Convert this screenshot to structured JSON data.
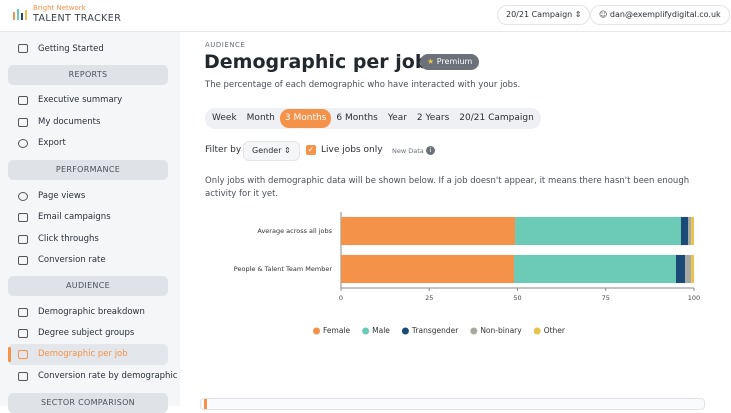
{
  "header": {
    "brand": "Bright Network",
    "product": "TALENT TRACKER",
    "campaign": "20/21 Campaign",
    "user": "dan@exemplifydigital.co.uk"
  },
  "sidebar": {
    "top_item": "Getting Started",
    "sections": [
      {
        "title": "REPORTS",
        "items": [
          "Executive summary",
          "My documents",
          "Export"
        ]
      },
      {
        "title": "PERFORMANCE",
        "items": [
          "Page views",
          "Email campaigns",
          "Click throughs",
          "Conversion rate"
        ]
      },
      {
        "title": "AUDIENCE",
        "items": [
          "Demographic breakdown",
          "Degree subject groups",
          "Demographic per job",
          "Conversion rate by demographic"
        ]
      },
      {
        "title": "SECTOR COMPARISON",
        "items": []
      }
    ]
  },
  "page": {
    "section": "AUDIENCE",
    "title": "Demographic per job",
    "badge": "Premium",
    "subtitle": "The percentage of each demographic who have interacted with your jobs.",
    "tabs": [
      "Week",
      "Month",
      "3 Months",
      "6 Months",
      "Year",
      "2 Years",
      "20/21 Campaign"
    ],
    "filter_label": "Filter by",
    "filter_value": "Gender",
    "checkbox_label": "Live jobs only",
    "new_data": "New Data",
    "note": "Only jobs with demographic data will be shown below. If a job doesn't appear, it means there hasn't been enough activity for it yet."
  },
  "chart_data": {
    "type": "bar",
    "orientation": "horizontal",
    "stacked": true,
    "categories": [
      "Average across all jobs",
      "People & Talent Team Member"
    ],
    "series": [
      {
        "name": "Female",
        "color": "#f5924a",
        "values": [
          49.3,
          49
        ]
      },
      {
        "name": "Male",
        "color": "#6ccbb7",
        "values": [
          47,
          45.9
        ]
      },
      {
        "name": "Transgender",
        "color": "#1b4a78",
        "values": [
          2,
          2.6
        ]
      },
      {
        "name": "Non-binary",
        "color": "#a8aaa2",
        "values": [
          0.9,
          1.7
        ]
      },
      {
        "name": "Other",
        "color": "#e9c24c",
        "values": [
          0.8,
          0.8
        ]
      }
    ],
    "xlim": [
      0,
      100
    ],
    "xticks": [
      0,
      25,
      50,
      75,
      100
    ],
    "grid": false,
    "legend": "bottom"
  }
}
